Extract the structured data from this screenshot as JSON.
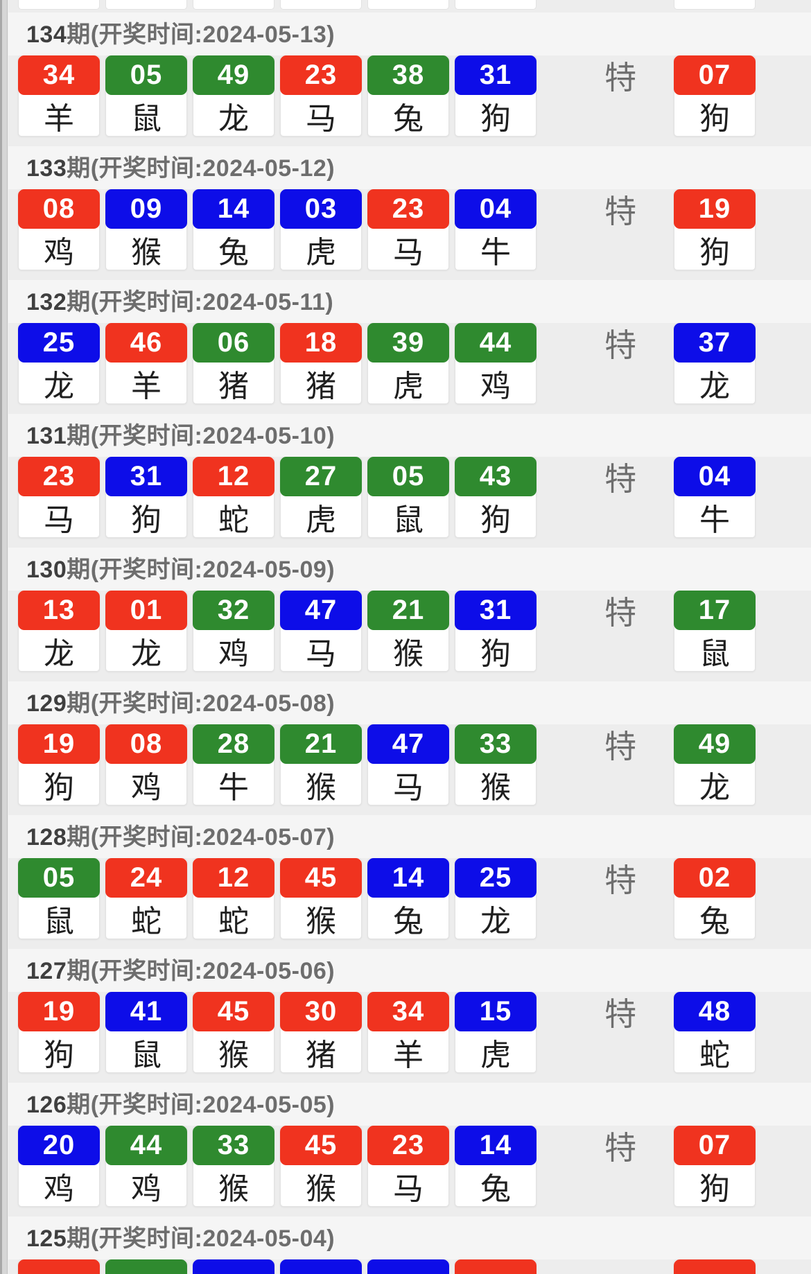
{
  "page": {
    "special_label": "特",
    "colors": {
      "red": "#f0331f",
      "green": "#2f8a2f",
      "blue": "#0d0de8"
    }
  },
  "draws": [
    {
      "period": "134",
      "header_suffix": "期(开奖时间:2024-05-13)",
      "numbers": [
        {
          "num": "34",
          "color": "red",
          "zodiac": "羊"
        },
        {
          "num": "05",
          "color": "green",
          "zodiac": "鼠"
        },
        {
          "num": "49",
          "color": "green",
          "zodiac": "龙"
        },
        {
          "num": "23",
          "color": "red",
          "zodiac": "马"
        },
        {
          "num": "38",
          "color": "green",
          "zodiac": "兔"
        },
        {
          "num": "31",
          "color": "blue",
          "zodiac": "狗"
        }
      ],
      "special": {
        "num": "07",
        "color": "red",
        "zodiac": "狗"
      }
    },
    {
      "period": "133",
      "header_suffix": "期(开奖时间:2024-05-12)",
      "numbers": [
        {
          "num": "08",
          "color": "red",
          "zodiac": "鸡"
        },
        {
          "num": "09",
          "color": "blue",
          "zodiac": "猴"
        },
        {
          "num": "14",
          "color": "blue",
          "zodiac": "兔"
        },
        {
          "num": "03",
          "color": "blue",
          "zodiac": "虎"
        },
        {
          "num": "23",
          "color": "red",
          "zodiac": "马"
        },
        {
          "num": "04",
          "color": "blue",
          "zodiac": "牛"
        }
      ],
      "special": {
        "num": "19",
        "color": "red",
        "zodiac": "狗"
      }
    },
    {
      "period": "132",
      "header_suffix": "期(开奖时间:2024-05-11)",
      "numbers": [
        {
          "num": "25",
          "color": "blue",
          "zodiac": "龙"
        },
        {
          "num": "46",
          "color": "red",
          "zodiac": "羊"
        },
        {
          "num": "06",
          "color": "green",
          "zodiac": "猪"
        },
        {
          "num": "18",
          "color": "red",
          "zodiac": "猪"
        },
        {
          "num": "39",
          "color": "green",
          "zodiac": "虎"
        },
        {
          "num": "44",
          "color": "green",
          "zodiac": "鸡"
        }
      ],
      "special": {
        "num": "37",
        "color": "blue",
        "zodiac": "龙"
      }
    },
    {
      "period": "131",
      "header_suffix": "期(开奖时间:2024-05-10)",
      "numbers": [
        {
          "num": "23",
          "color": "red",
          "zodiac": "马"
        },
        {
          "num": "31",
          "color": "blue",
          "zodiac": "狗"
        },
        {
          "num": "12",
          "color": "red",
          "zodiac": "蛇"
        },
        {
          "num": "27",
          "color": "green",
          "zodiac": "虎"
        },
        {
          "num": "05",
          "color": "green",
          "zodiac": "鼠"
        },
        {
          "num": "43",
          "color": "green",
          "zodiac": "狗"
        }
      ],
      "special": {
        "num": "04",
        "color": "blue",
        "zodiac": "牛"
      }
    },
    {
      "period": "130",
      "header_suffix": "期(开奖时间:2024-05-09)",
      "numbers": [
        {
          "num": "13",
          "color": "red",
          "zodiac": "龙"
        },
        {
          "num": "01",
          "color": "red",
          "zodiac": "龙"
        },
        {
          "num": "32",
          "color": "green",
          "zodiac": "鸡"
        },
        {
          "num": "47",
          "color": "blue",
          "zodiac": "马"
        },
        {
          "num": "21",
          "color": "green",
          "zodiac": "猴"
        },
        {
          "num": "31",
          "color": "blue",
          "zodiac": "狗"
        }
      ],
      "special": {
        "num": "17",
        "color": "green",
        "zodiac": "鼠"
      }
    },
    {
      "period": "129",
      "header_suffix": "期(开奖时间:2024-05-08)",
      "numbers": [
        {
          "num": "19",
          "color": "red",
          "zodiac": "狗"
        },
        {
          "num": "08",
          "color": "red",
          "zodiac": "鸡"
        },
        {
          "num": "28",
          "color": "green",
          "zodiac": "牛"
        },
        {
          "num": "21",
          "color": "green",
          "zodiac": "猴"
        },
        {
          "num": "47",
          "color": "blue",
          "zodiac": "马"
        },
        {
          "num": "33",
          "color": "green",
          "zodiac": "猴"
        }
      ],
      "special": {
        "num": "49",
        "color": "green",
        "zodiac": "龙"
      }
    },
    {
      "period": "128",
      "header_suffix": "期(开奖时间:2024-05-07)",
      "numbers": [
        {
          "num": "05",
          "color": "green",
          "zodiac": "鼠"
        },
        {
          "num": "24",
          "color": "red",
          "zodiac": "蛇"
        },
        {
          "num": "12",
          "color": "red",
          "zodiac": "蛇"
        },
        {
          "num": "45",
          "color": "red",
          "zodiac": "猴"
        },
        {
          "num": "14",
          "color": "blue",
          "zodiac": "兔"
        },
        {
          "num": "25",
          "color": "blue",
          "zodiac": "龙"
        }
      ],
      "special": {
        "num": "02",
        "color": "red",
        "zodiac": "兔"
      }
    },
    {
      "period": "127",
      "header_suffix": "期(开奖时间:2024-05-06)",
      "numbers": [
        {
          "num": "19",
          "color": "red",
          "zodiac": "狗"
        },
        {
          "num": "41",
          "color": "blue",
          "zodiac": "鼠"
        },
        {
          "num": "45",
          "color": "red",
          "zodiac": "猴"
        },
        {
          "num": "30",
          "color": "red",
          "zodiac": "猪"
        },
        {
          "num": "34",
          "color": "red",
          "zodiac": "羊"
        },
        {
          "num": "15",
          "color": "blue",
          "zodiac": "虎"
        }
      ],
      "special": {
        "num": "48",
        "color": "blue",
        "zodiac": "蛇"
      }
    },
    {
      "period": "126",
      "header_suffix": "期(开奖时间:2024-05-05)",
      "numbers": [
        {
          "num": "20",
          "color": "blue",
          "zodiac": "鸡"
        },
        {
          "num": "44",
          "color": "green",
          "zodiac": "鸡"
        },
        {
          "num": "33",
          "color": "green",
          "zodiac": "猴"
        },
        {
          "num": "45",
          "color": "red",
          "zodiac": "猴"
        },
        {
          "num": "23",
          "color": "red",
          "zodiac": "马"
        },
        {
          "num": "14",
          "color": "blue",
          "zodiac": "兔"
        }
      ],
      "special": {
        "num": "07",
        "color": "red",
        "zodiac": "狗"
      }
    }
  ],
  "partial_draw": {
    "period": "125",
    "header_suffix": "期(开奖时间:2024-05-04)",
    "sliver_colors": [
      "red",
      "green",
      "blue",
      "blue",
      "blue",
      "red"
    ],
    "special_color": "red"
  }
}
